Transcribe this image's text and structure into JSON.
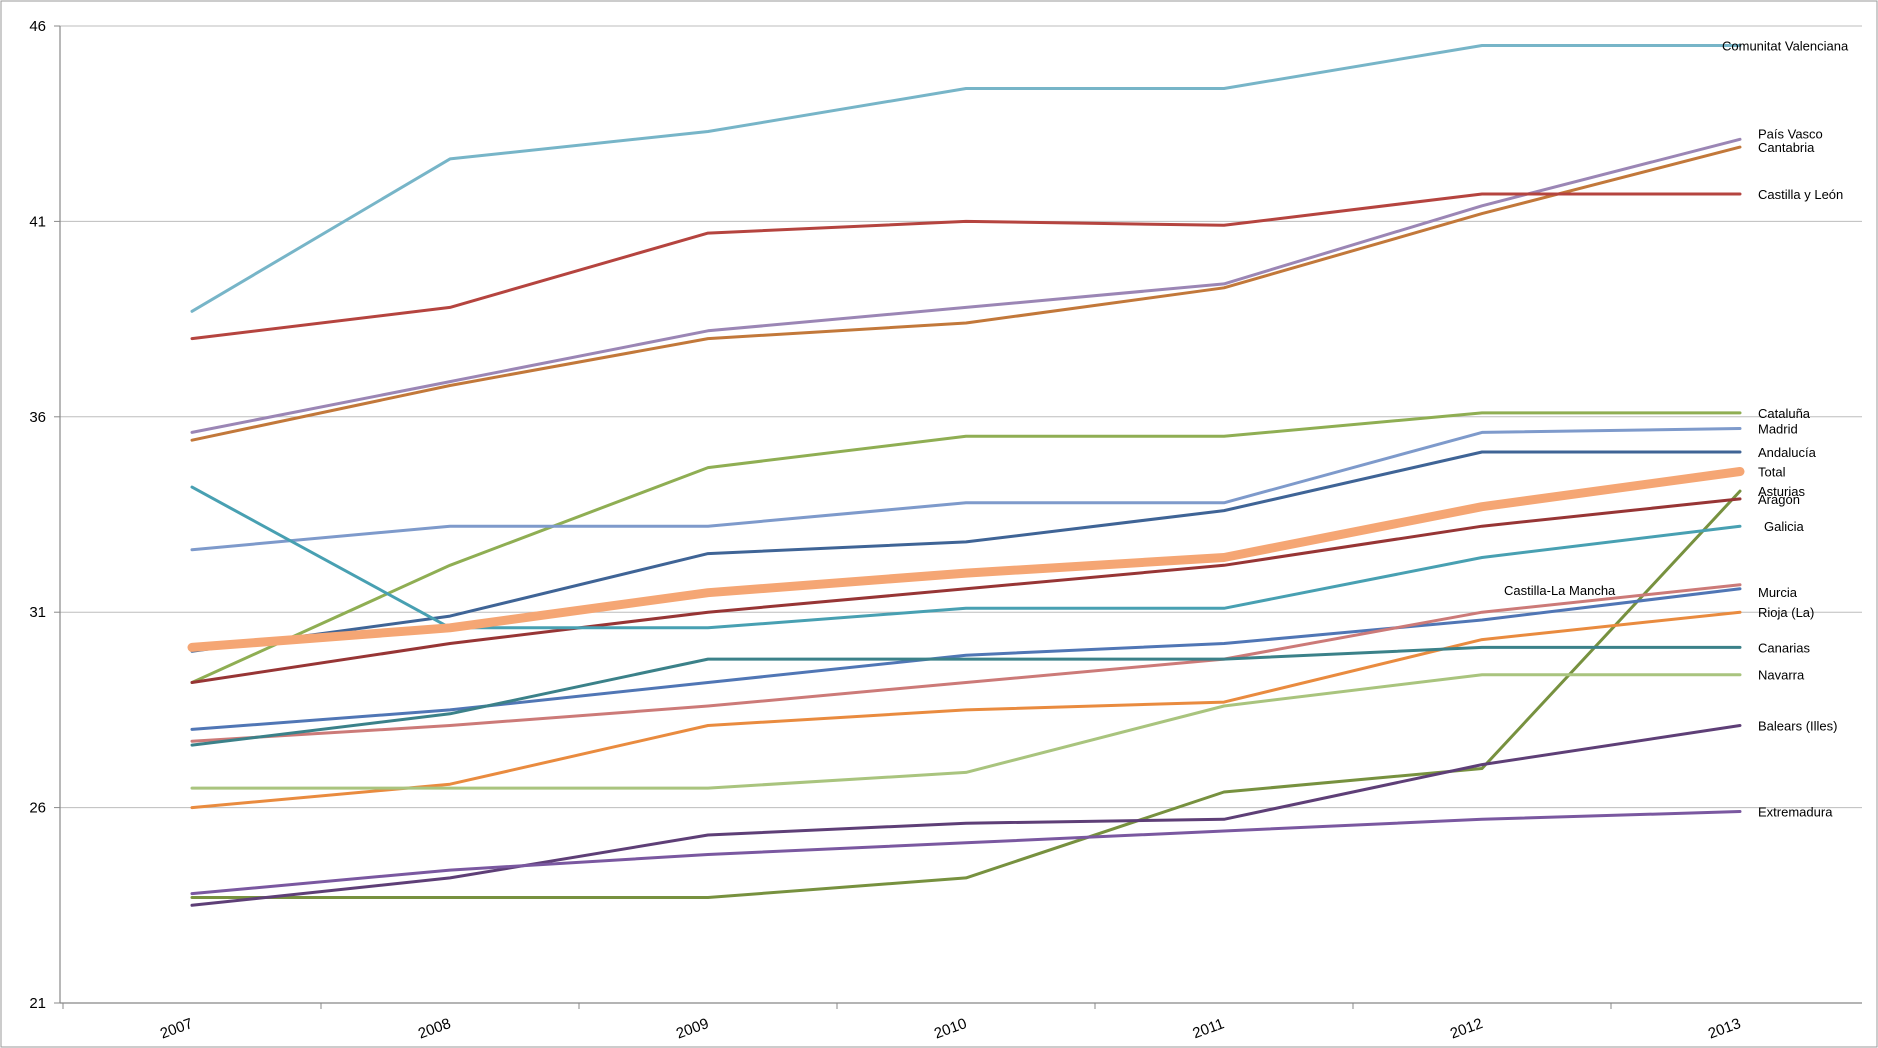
{
  "chart_data": {
    "type": "line",
    "title": "",
    "xlabel": "",
    "ylabel": "",
    "x": [
      "2007",
      "2008",
      "2009",
      "2010",
      "2011",
      "2012",
      "2013"
    ],
    "ylim": [
      21,
      46
    ],
    "yticks": [
      "21",
      "26",
      "31",
      "36",
      "41",
      "46"
    ],
    "grid": "horizontal",
    "legend": "labels at line ends",
    "series": [
      {
        "name": "Comunitat Valenciana",
        "color": "#77b5c8",
        "values": [
          38.7,
          42.6,
          43.3,
          44.4,
          44.4,
          45.5,
          45.5
        ]
      },
      {
        "name": "País Vasco",
        "color": "#9b86b5",
        "values": [
          35.6,
          36.9,
          38.2,
          38.8,
          39.4,
          41.4,
          43.1
        ]
      },
      {
        "name": "Cantabria",
        "color": "#c2783a",
        "values": [
          35.4,
          36.8,
          38.0,
          38.4,
          39.3,
          41.2,
          42.9
        ]
      },
      {
        "name": "Castilla y León",
        "color": "#b5443f",
        "values": [
          38.0,
          38.8,
          40.7,
          41.0,
          40.9,
          41.7,
          41.7
        ]
      },
      {
        "name": "Cataluña",
        "color": "#8fae53",
        "values": [
          29.2,
          32.2,
          34.7,
          35.5,
          35.5,
          36.1,
          36.1
        ]
      },
      {
        "name": "Madrid",
        "color": "#7e9acb",
        "values": [
          32.6,
          33.2,
          33.2,
          33.8,
          33.8,
          35.6,
          35.7
        ]
      },
      {
        "name": "Andalucía",
        "color": "#3f6496",
        "values": [
          30.0,
          30.9,
          32.5,
          32.8,
          33.6,
          35.1,
          35.1
        ]
      },
      {
        "name": "Total",
        "color": "#f5a674",
        "values": [
          30.1,
          30.6,
          31.5,
          32.0,
          32.4,
          33.7,
          34.6
        ],
        "highlight": true
      },
      {
        "name": "Asturias",
        "color": "#77913f",
        "values": [
          23.7,
          23.7,
          23.7,
          24.2,
          26.4,
          27.0,
          34.1
        ]
      },
      {
        "name": "Aragón",
        "color": "#973535",
        "values": [
          29.2,
          30.2,
          31.0,
          31.6,
          32.2,
          33.2,
          33.9
        ]
      },
      {
        "name": "Galicia",
        "color": "#48a0b2",
        "values": [
          34.2,
          30.6,
          30.6,
          31.1,
          31.1,
          32.4,
          33.2
        ]
      },
      {
        "name": "Murcia",
        "color": "#5076b5",
        "values": [
          28.0,
          28.5,
          29.2,
          29.9,
          30.2,
          30.8,
          31.6
        ]
      },
      {
        "name": "Castilla-La Mancha",
        "color": "#cc7a78",
        "values": [
          27.7,
          28.1,
          28.6,
          29.2,
          29.8,
          31.0,
          31.7
        ]
      },
      {
        "name": "Rioja (La)",
        "color": "#e98b3f",
        "values": [
          26.0,
          26.6,
          28.1,
          28.5,
          28.7,
          30.3,
          31.0
        ]
      },
      {
        "name": "Canarias",
        "color": "#3b8189",
        "values": [
          27.6,
          28.4,
          29.8,
          29.8,
          29.8,
          30.1,
          30.1
        ]
      },
      {
        "name": "Navarra",
        "color": "#a9c47e",
        "values": [
          26.5,
          26.5,
          26.5,
          26.9,
          28.6,
          29.4,
          29.4
        ]
      },
      {
        "name": "Balears (Illes)",
        "color": "#5e3f77",
        "values": [
          23.5,
          24.2,
          25.3,
          25.6,
          25.7,
          27.1,
          28.1
        ]
      },
      {
        "name": "Extremadura",
        "color": "#7a58a0",
        "values": [
          23.8,
          24.4,
          24.8,
          25.1,
          25.4,
          25.7,
          25.9
        ]
      }
    ]
  }
}
